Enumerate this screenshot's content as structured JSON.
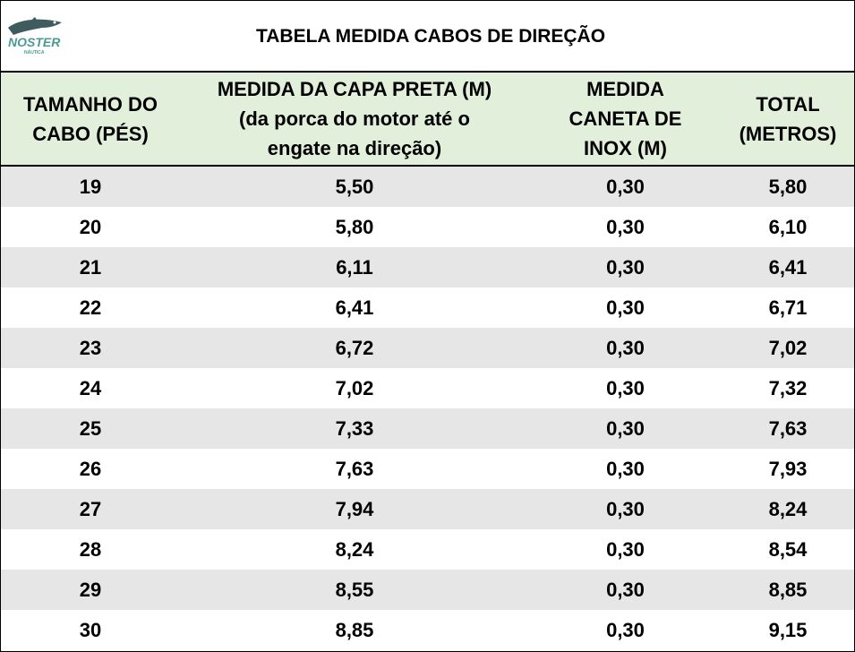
{
  "logo": {
    "name": "NOSTER",
    "tagline": "NÁUTICA"
  },
  "title": "TABELA MEDIDA CABOS DE DIREÇÃO",
  "table": {
    "header": [
      [
        "TAMANHO DO",
        "CABO (PÉS)"
      ],
      [
        "MEDIDA DA CAPA PRETA (M)",
        "(da porca do motor até o",
        "engate na direção)"
      ],
      [
        "MEDIDA",
        "CANETA DE",
        "INOX (M)"
      ],
      [
        "TOTAL",
        "(METROS)"
      ]
    ],
    "rows": [
      [
        "19",
        "5,50",
        "0,30",
        "5,80"
      ],
      [
        "20",
        "5,80",
        "0,30",
        "6,10"
      ],
      [
        "21",
        "6,11",
        "0,30",
        "6,41"
      ],
      [
        "22",
        "6,41",
        "0,30",
        "6,71"
      ],
      [
        "23",
        "6,72",
        "0,30",
        "7,02"
      ],
      [
        "24",
        "7,02",
        "0,30",
        "7,32"
      ],
      [
        "25",
        "7,33",
        "0,30",
        "7,63"
      ],
      [
        "26",
        "7,63",
        "0,30",
        "7,93"
      ],
      [
        "27",
        "7,94",
        "0,30",
        "8,24"
      ],
      [
        "28",
        "8,24",
        "0,30",
        "8,54"
      ],
      [
        "29",
        "8,55",
        "0,30",
        "8,85"
      ],
      [
        "30",
        "8,85",
        "0,30",
        "9,15"
      ]
    ]
  }
}
